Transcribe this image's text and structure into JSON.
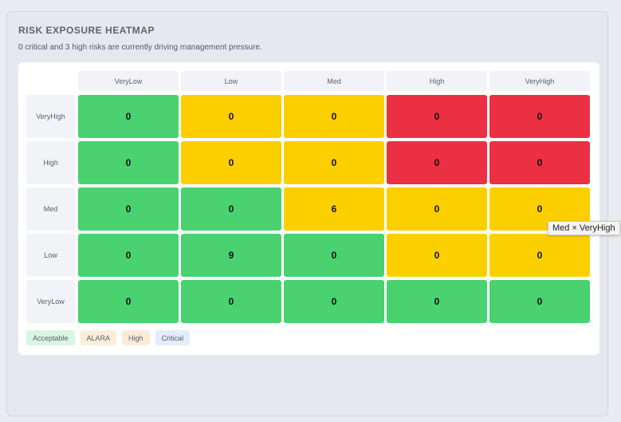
{
  "header": {
    "title": "RISK EXPOSURE HEATMAP",
    "subtitle": "0 critical and 3 high risks are currently driving management pressure."
  },
  "chart_data": {
    "type": "heatmap",
    "x_categories": [
      "VeryLow",
      "Low",
      "Med",
      "High",
      "VeryHigh"
    ],
    "y_categories": [
      "VeryHigh",
      "High",
      "Med",
      "Low",
      "VeryLow"
    ],
    "values": [
      [
        0,
        0,
        0,
        0,
        0
      ],
      [
        0,
        0,
        0,
        0,
        0
      ],
      [
        0,
        0,
        6,
        0,
        0
      ],
      [
        0,
        9,
        0,
        0,
        0
      ],
      [
        0,
        0,
        0,
        0,
        0
      ]
    ],
    "levels": [
      [
        "acceptable",
        "alara",
        "alara",
        "critical",
        "critical"
      ],
      [
        "acceptable",
        "alara",
        "alara",
        "critical",
        "critical"
      ],
      [
        "acceptable",
        "acceptable",
        "alara",
        "alara",
        "alara"
      ],
      [
        "acceptable",
        "acceptable",
        "acceptable",
        "alara",
        "alara"
      ],
      [
        "acceptable",
        "acceptable",
        "acceptable",
        "acceptable",
        "acceptable"
      ]
    ],
    "level_colors": {
      "acceptable": "#4ad170",
      "alara": "#fccf00",
      "critical": "#ec3043"
    }
  },
  "legend": [
    {
      "label": "Acceptable",
      "bg": "#d9f6e3"
    },
    {
      "label": "ALARA",
      "bg": "#fcefd9"
    },
    {
      "label": "High",
      "bg": "#fdebd7"
    },
    {
      "label": "Critical",
      "bg": "#e3edfb"
    }
  ],
  "tooltip": {
    "text": "Med × VeryHigh"
  }
}
